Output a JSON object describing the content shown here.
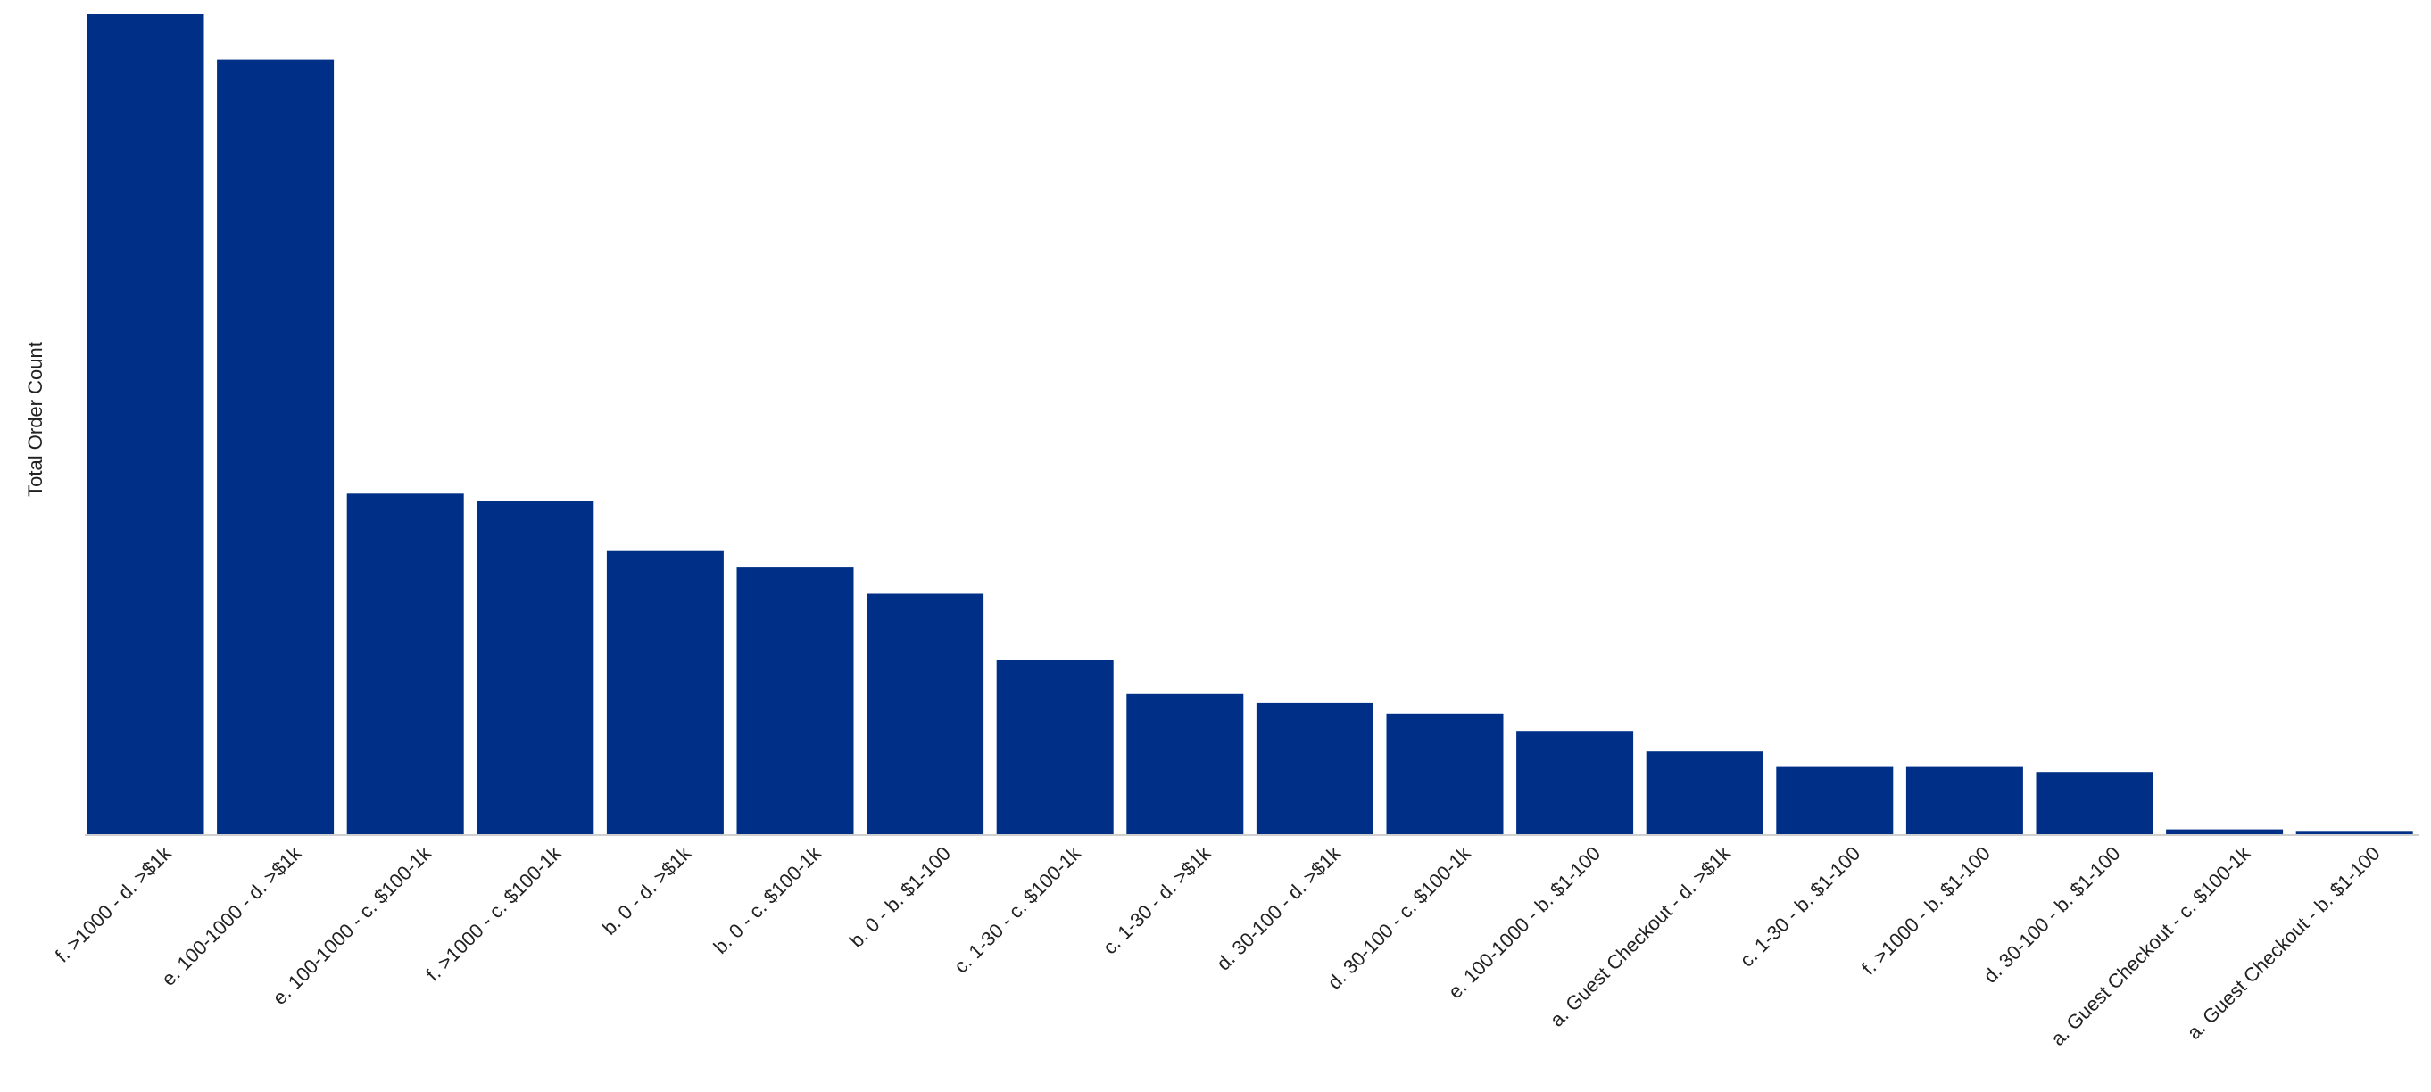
{
  "chart_data": {
    "type": "bar",
    "title": "",
    "xlabel": "",
    "ylabel": "Total Order Count",
    "ylim": [
      0,
      1000
    ],
    "grid": false,
    "legend": "none",
    "bar_color": "#002f87",
    "axis_color": "#cfcfcf",
    "categories": [
      "f. >1000 - d. >$1k",
      "e. 100-1000 - d. >$1k",
      "e. 100-1000 - c. $100-1k",
      "f. >1000 - c. $100-1k",
      "b. 0 - d. >$1k",
      "b. 0 - c. $100-1k",
      "b. 0 - b. $1-100",
      "c. 1-30 - c. $100-1k",
      "c. 1-30 - d. >$1k",
      "d. 30-100 - d. >$1k",
      "d. 30-100 - c. $100-1k",
      "e. 100-1000 - b. $1-100",
      "a. Guest Checkout - d. >$1k",
      "c. 1-30 - b. $1-100",
      "f. >1000 - b. $1-100",
      "d. 30-100 - b. $1-100",
      "a. Guest Checkout - c. $100-1k",
      "a. Guest Checkout - b. $1-100"
    ],
    "values": [
      1000,
      945,
      416,
      407,
      346,
      326,
      294,
      213,
      172,
      161,
      148,
      127,
      102,
      83,
      83,
      77,
      7,
      4
    ]
  }
}
